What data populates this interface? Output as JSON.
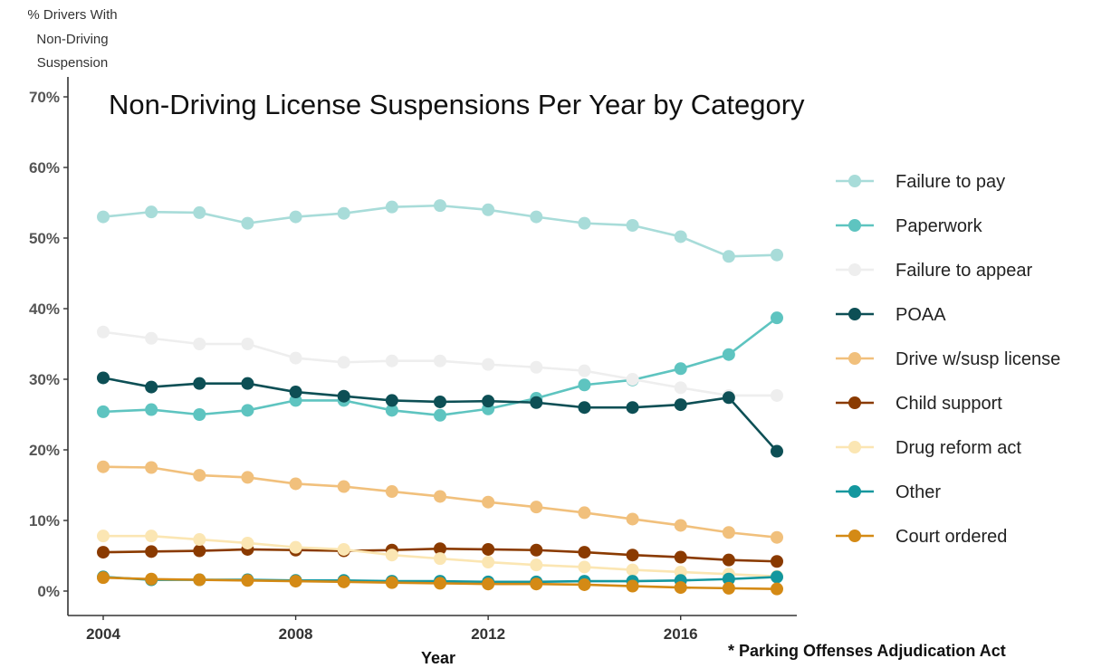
{
  "chart_data": {
    "type": "line",
    "title": "Non-Driving License Suspensions Per Year by Category",
    "xlabel": "Year",
    "ylabel": [
      "% Drivers With",
      "Non-Driving",
      "Suspension"
    ],
    "footnote": "* Parking Offenses Adjudication Act",
    "x": [
      2004,
      2005,
      2006,
      2007,
      2008,
      2009,
      2010,
      2011,
      2012,
      2013,
      2014,
      2015,
      2016,
      2017,
      2018
    ],
    "xticks": [
      2004,
      2008,
      2012,
      2016
    ],
    "xtick_labels": [
      "2004",
      "2008",
      "2012",
      "2016"
    ],
    "yticks": [
      0,
      10,
      20,
      30,
      40,
      50,
      60,
      70
    ],
    "ytick_labels": [
      "0%",
      "10%",
      "20%",
      "30%",
      "40%",
      "50%",
      "60%",
      "70%"
    ],
    "ylim": [
      -3,
      73
    ],
    "xlim": [
      2003.75,
      2018.6
    ],
    "grid": false,
    "legend_position": "right",
    "series": [
      {
        "name": "Failure to pay",
        "color": "#a8dcd9",
        "values": [
          53.0,
          53.7,
          53.6,
          52.1,
          53.0,
          53.5,
          54.4,
          54.6,
          54.0,
          53.0,
          52.1,
          51.8,
          50.2,
          47.4,
          47.6
        ]
      },
      {
        "name": "Paperwork",
        "color": "#5ec4c0",
        "values": [
          25.4,
          25.7,
          25.0,
          25.6,
          27.0,
          27.0,
          25.6,
          24.9,
          25.8,
          27.3,
          29.2,
          29.9,
          31.5,
          33.5,
          38.7
        ]
      },
      {
        "name": "Failure to appear",
        "color": "#eeeeee",
        "values": [
          36.7,
          35.8,
          35.0,
          35.0,
          33.0,
          32.4,
          32.6,
          32.6,
          32.1,
          31.7,
          31.2,
          30.0,
          28.8,
          27.7,
          27.7
        ]
      },
      {
        "name": "POAA",
        "color": "#0d4f55",
        "values": [
          30.2,
          28.9,
          29.4,
          29.4,
          28.2,
          27.6,
          27.0,
          26.8,
          26.9,
          26.7,
          26.0,
          26.0,
          26.4,
          27.4,
          19.8
        ]
      },
      {
        "name": "Drive w/susp license",
        "color": "#f1c07c",
        "values": [
          17.6,
          17.5,
          16.4,
          16.1,
          15.2,
          14.8,
          14.1,
          13.4,
          12.6,
          11.9,
          11.1,
          10.2,
          9.3,
          8.3,
          7.6
        ]
      },
      {
        "name": "Child support",
        "color": "#8a3a00",
        "values": [
          5.5,
          5.6,
          5.7,
          5.9,
          5.8,
          5.7,
          5.8,
          6.0,
          5.9,
          5.8,
          5.5,
          5.1,
          4.8,
          4.4,
          4.2
        ]
      },
      {
        "name": "Drug reform act",
        "color": "#fbe6b3",
        "values": [
          7.8,
          7.8,
          7.3,
          6.8,
          6.2,
          5.9,
          5.1,
          4.6,
          4.1,
          3.7,
          3.4,
          3.0,
          2.7,
          2.4,
          2.1
        ]
      },
      {
        "name": "Other",
        "color": "#13979e",
        "values": [
          2.0,
          1.6,
          1.6,
          1.6,
          1.5,
          1.5,
          1.4,
          1.4,
          1.3,
          1.3,
          1.4,
          1.4,
          1.5,
          1.7,
          2.0
        ]
      },
      {
        "name": "Court ordered",
        "color": "#d48a15",
        "values": [
          1.9,
          1.7,
          1.6,
          1.5,
          1.4,
          1.3,
          1.2,
          1.1,
          1.0,
          1.0,
          0.9,
          0.7,
          0.5,
          0.4,
          0.3
        ]
      }
    ]
  }
}
